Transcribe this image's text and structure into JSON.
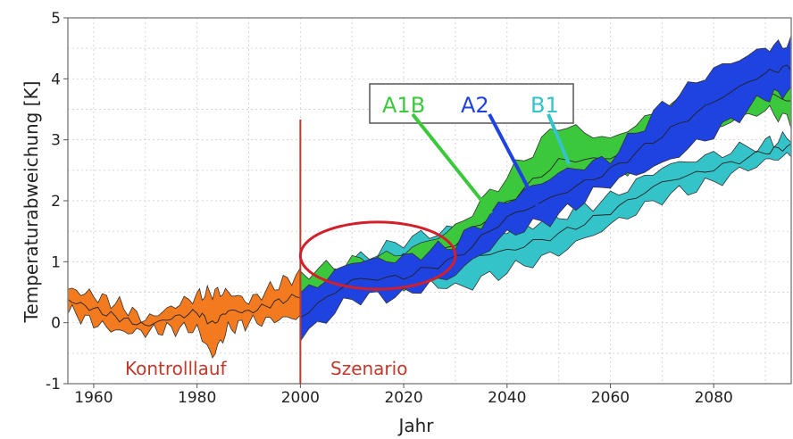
{
  "chart_data": {
    "type": "area",
    "xlabel": "Jahr",
    "ylabel": "Temperaturabweichung [K]",
    "xlim": [
      1955,
      2095
    ],
    "ylim": [
      -1,
      5
    ],
    "xticks": [
      1960,
      1980,
      2000,
      2020,
      2040,
      2060,
      2080
    ],
    "yticks": [
      -1,
      0,
      1,
      2,
      3,
      4,
      5
    ],
    "grid": true,
    "divider_year": 2000,
    "region_labels": [
      "Kontrolllauf",
      "Szenario"
    ],
    "highlight_ellipse": {
      "center": [
        2015,
        1.1
      ],
      "radii": [
        15,
        0.55
      ]
    },
    "legend_location": "upper-center",
    "colors": {
      "orange": "#f47a1f",
      "green": "#3cc83c",
      "blue": "#1f43e0",
      "cyan": "#33c3c8",
      "divider": "#c0392b",
      "ellipse": "#d21f2a"
    },
    "series": [
      {
        "name": "",
        "color": "#f47a1f",
        "x": [
          1955,
          1960,
          1965,
          1970,
          1975,
          1980,
          1983,
          1986,
          1990,
          1995,
          2000
        ],
        "lower": [
          0.2,
          0.0,
          -0.15,
          -0.15,
          -0.1,
          -0.1,
          -0.55,
          -0.1,
          0.0,
          0.05,
          0.1
        ],
        "upper": [
          0.55,
          0.45,
          0.3,
          0.05,
          0.25,
          0.45,
          0.5,
          0.5,
          0.35,
          0.6,
          0.8
        ]
      },
      {
        "name": "A1B",
        "color": "#3cc83c",
        "x": [
          2000,
          2010,
          2020,
          2030,
          2040,
          2050,
          2060,
          2070,
          2080,
          2090,
          2095
        ],
        "lower": [
          0.1,
          0.6,
          0.6,
          1.05,
          1.55,
          2.05,
          2.4,
          2.8,
          3.2,
          3.5,
          3.3
        ],
        "upper": [
          0.8,
          1.0,
          1.15,
          1.55,
          2.4,
          3.25,
          3.0,
          3.5,
          3.8,
          4.05,
          3.95
        ]
      },
      {
        "name": "A2",
        "color": "#1f43e0",
        "x": [
          2000,
          2010,
          2020,
          2030,
          2040,
          2050,
          2060,
          2070,
          2080,
          2090,
          2095
        ],
        "lower": [
          -0.25,
          0.4,
          0.45,
          0.8,
          1.45,
          1.75,
          2.3,
          2.6,
          3.1,
          3.7,
          3.8
        ],
        "upper": [
          0.45,
          1.0,
          1.05,
          1.3,
          2.0,
          2.45,
          2.7,
          3.55,
          4.15,
          4.5,
          4.6
        ]
      },
      {
        "name": "B1",
        "color": "#33c3c8",
        "x": [
          2000,
          2010,
          2020,
          2030,
          2040,
          2050,
          2060,
          2070,
          2080,
          2090,
          2095
        ],
        "lower": [
          0.3,
          0.75,
          0.8,
          0.55,
          0.85,
          1.15,
          1.6,
          2.05,
          2.3,
          2.65,
          2.75
        ],
        "upper": [
          0.6,
          1.0,
          1.35,
          1.55,
          1.5,
          1.75,
          2.05,
          2.55,
          2.75,
          2.95,
          3.05
        ]
      }
    ]
  }
}
